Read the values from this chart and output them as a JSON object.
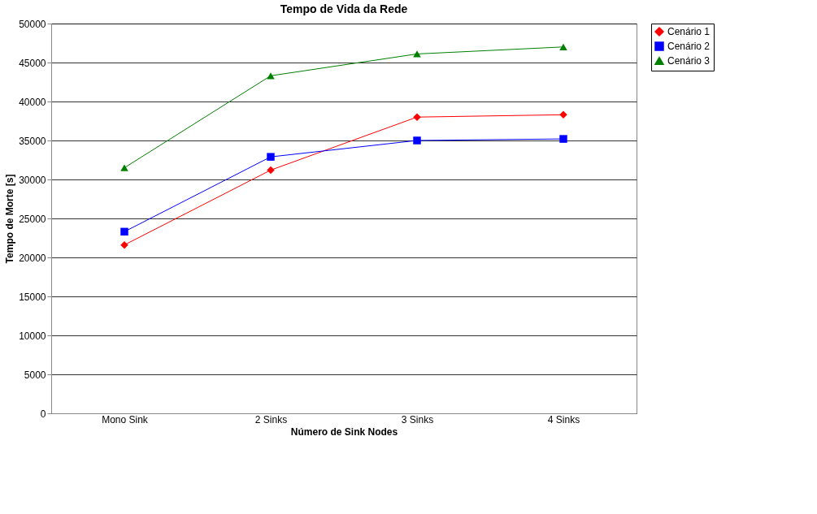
{
  "chart_data": {
    "type": "line",
    "title": "Tempo de Vida da Rede",
    "xlabel": "Número de Sink Nodes",
    "ylabel": "Tempo de Morte [s]",
    "categories": [
      "Mono Sink",
      "2 Sinks",
      "3 Sinks",
      "4 Sinks"
    ],
    "series": [
      {
        "name": "Cenário 1",
        "color": "#ff0000",
        "marker": "diamond",
        "values": [
          21600,
          31200,
          38000,
          38300
        ]
      },
      {
        "name": "Cenário 2",
        "color": "#0000ff",
        "marker": "square",
        "values": [
          23300,
          32900,
          35000,
          35200
        ]
      },
      {
        "name": "Cenário 3",
        "color": "#008000",
        "marker": "triangle",
        "values": [
          31500,
          43300,
          46100,
          47000
        ]
      }
    ],
    "ylim": [
      0,
      50000
    ],
    "yticks": [
      0,
      5000,
      10000,
      15000,
      20000,
      25000,
      30000,
      35000,
      40000,
      45000,
      50000
    ],
    "grid": "y",
    "legend": "right",
    "line_style": "solid"
  }
}
